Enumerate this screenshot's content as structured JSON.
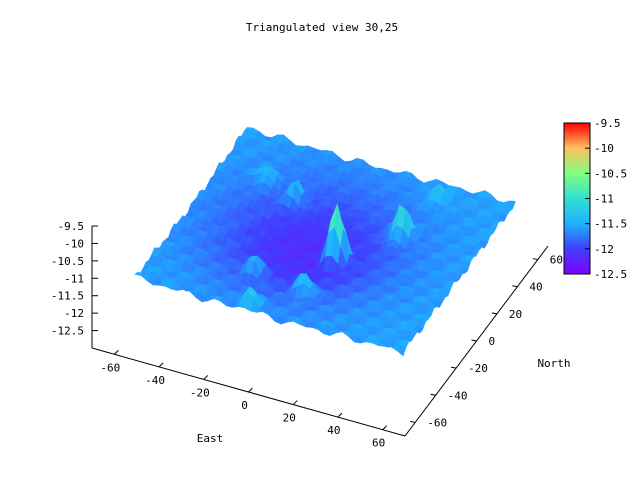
{
  "chart_data": {
    "type": "surface",
    "title": "Triangulated view 30,25",
    "view": {
      "rot_x": 30,
      "rot_z": 25
    },
    "xlabel": "East",
    "ylabel": "North",
    "zlabel": "",
    "xlim": [
      -70,
      70
    ],
    "ylim": [
      -70,
      70
    ],
    "zlim": [
      -13,
      -9.5
    ],
    "x_ticks": [
      -60,
      -40,
      -20,
      0,
      20,
      40,
      60
    ],
    "y_ticks": [
      -60,
      -40,
      -20,
      0,
      20,
      40,
      60
    ],
    "z_ticks": [
      -9.5,
      -10,
      -10.5,
      -11,
      -11.5,
      -12,
      -12.5
    ],
    "colorbar": {
      "range": [
        -12.5,
        -9.5
      ],
      "ticks": [
        -9.5,
        -10,
        -10.5,
        -11,
        -11.5,
        -12,
        -12.5
      ],
      "colors": [
        "#7f00ff",
        "#4040ff",
        "#1fb0ff",
        "#33e0d0",
        "#80ff80",
        "#ffc060",
        "#ff0000"
      ]
    },
    "surface": {
      "x_range": [
        -60,
        60
      ],
      "y_range": [
        -50,
        60
      ],
      "base_level": -11.55,
      "depression": {
        "x": -8,
        "y": 5,
        "sigma": 28,
        "depth": -0.6
      },
      "peaks": [
        {
          "x": 5,
          "y": 5,
          "height": -9.9
        },
        {
          "x": 25,
          "y": 25,
          "height": -10.6
        },
        {
          "x": -25,
          "y": 30,
          "height": -11.0
        },
        {
          "x": -20,
          "y": -20,
          "height": -11.0
        },
        {
          "x": 5,
          "y": -25,
          "height": -10.9
        },
        {
          "x": -10,
          "y": -45,
          "height": -11.1
        },
        {
          "x": 30,
          "y": 50,
          "height": -11.2
        },
        {
          "x": -40,
          "y": 35,
          "height": -11.1
        }
      ]
    }
  }
}
